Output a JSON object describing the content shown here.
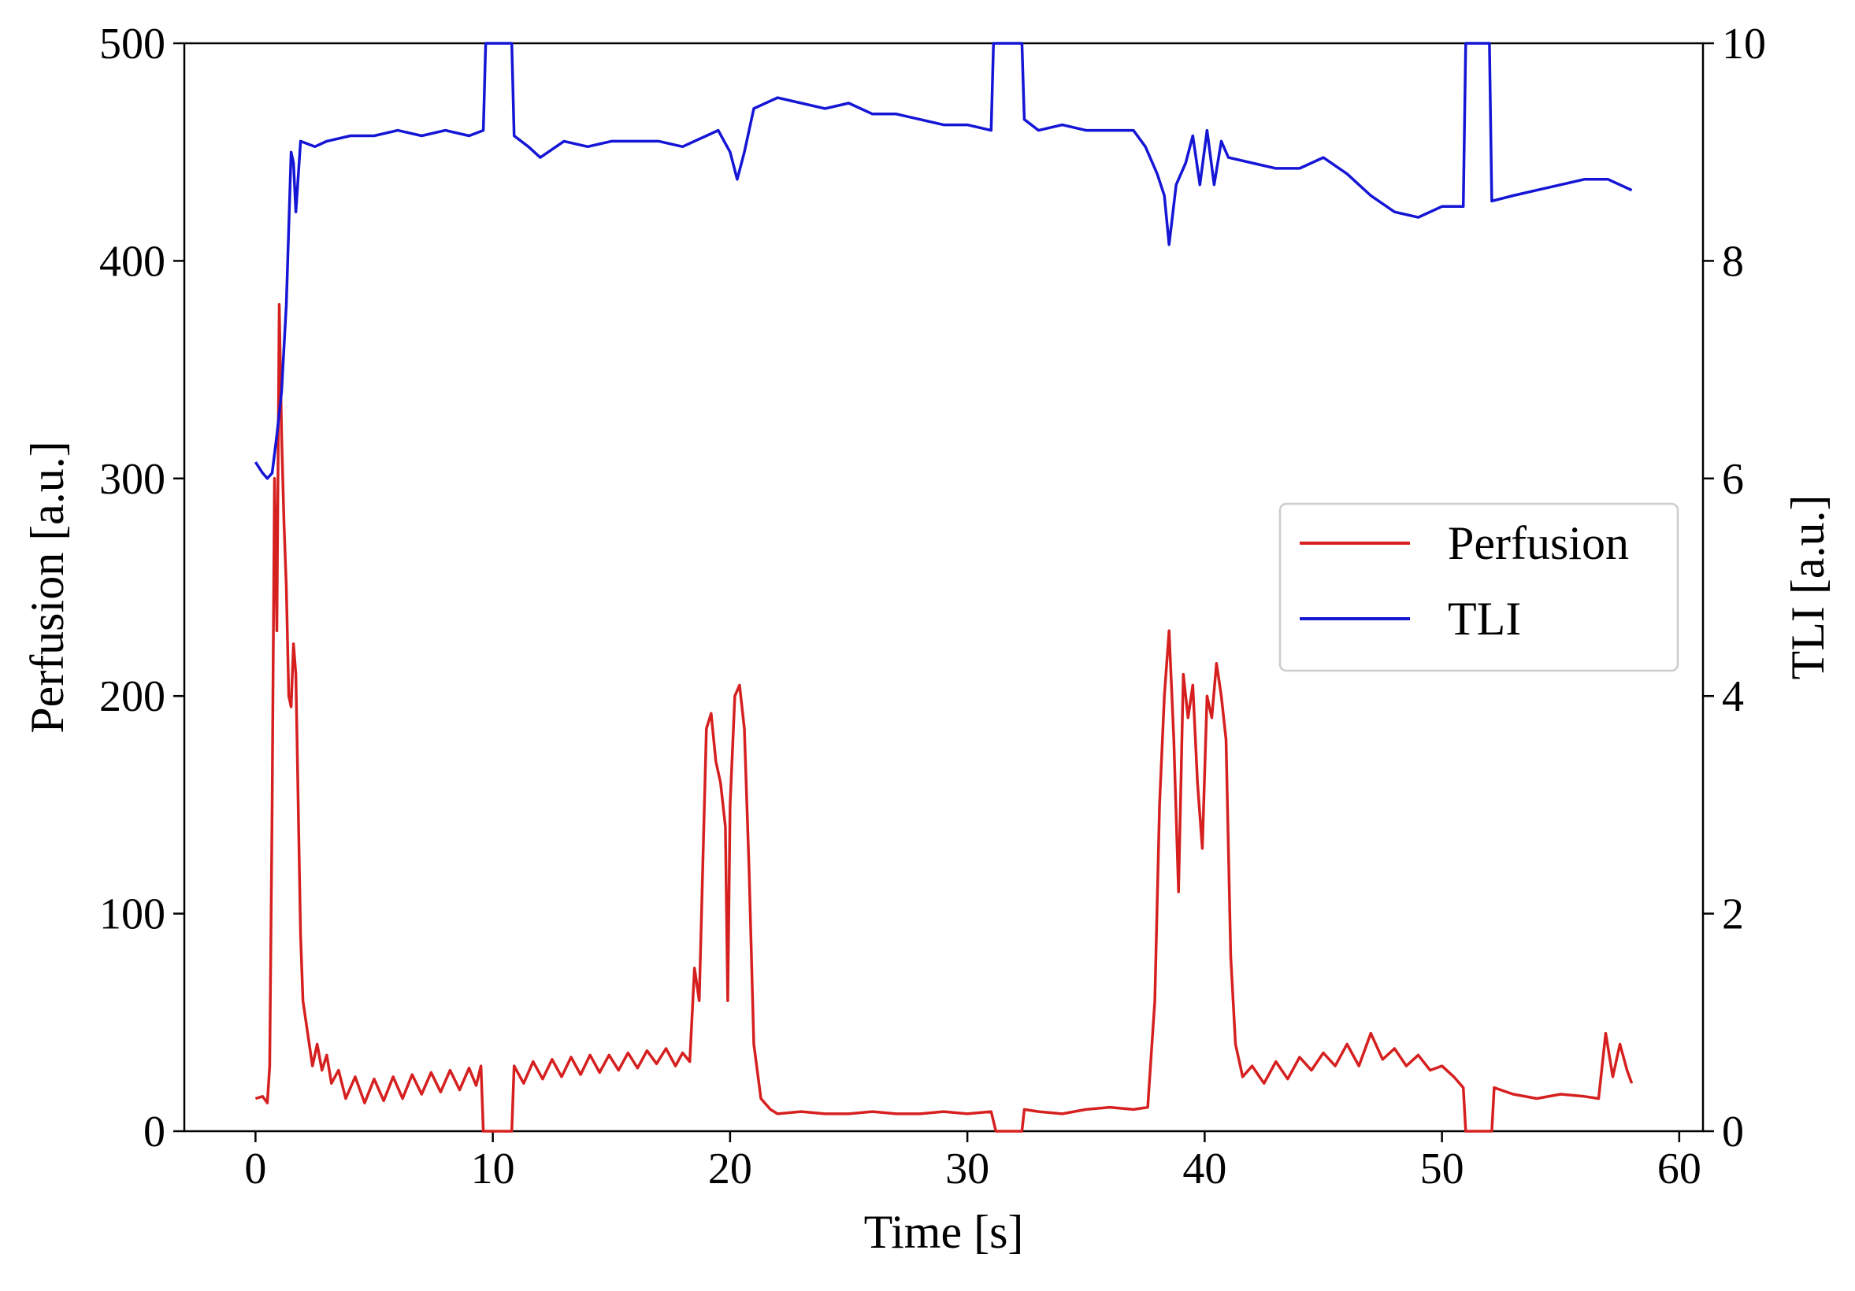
{
  "chart_data": {
    "type": "line",
    "title": "",
    "xlabel": "Time [s]",
    "ylabel": "Perfusion [a.u.]",
    "y2label": "TLI [a.u.]",
    "xlim": [
      -3,
      61
    ],
    "ylim": [
      0,
      500
    ],
    "y2lim": [
      0,
      10
    ],
    "xticks": [
      0,
      10,
      20,
      30,
      40,
      50,
      60
    ],
    "yticks": [
      0,
      100,
      200,
      300,
      400,
      500
    ],
    "y2ticks": [
      0,
      2,
      4,
      6,
      8,
      10
    ],
    "grid": false,
    "legend_position": "center-right",
    "series": [
      {
        "name": "Perfusion",
        "axis": "left",
        "color": "#d62020",
        "points": [
          [
            0,
            15
          ],
          [
            0.3,
            16
          ],
          [
            0.5,
            13
          ],
          [
            0.6,
            30
          ],
          [
            0.7,
            150
          ],
          [
            0.8,
            300
          ],
          [
            0.9,
            230
          ],
          [
            1.0,
            380
          ],
          [
            1.1,
            320
          ],
          [
            1.2,
            280
          ],
          [
            1.3,
            250
          ],
          [
            1.4,
            200
          ],
          [
            1.5,
            195
          ],
          [
            1.6,
            224
          ],
          [
            1.7,
            210
          ],
          [
            1.8,
            150
          ],
          [
            1.9,
            90
          ],
          [
            2.0,
            60
          ],
          [
            2.2,
            45
          ],
          [
            2.4,
            30
          ],
          [
            2.6,
            40
          ],
          [
            2.8,
            28
          ],
          [
            3.0,
            35
          ],
          [
            3.2,
            22
          ],
          [
            3.5,
            28
          ],
          [
            3.8,
            15
          ],
          [
            4.2,
            25
          ],
          [
            4.6,
            13
          ],
          [
            5.0,
            24
          ],
          [
            5.4,
            14
          ],
          [
            5.8,
            25
          ],
          [
            6.2,
            15
          ],
          [
            6.6,
            26
          ],
          [
            7.0,
            17
          ],
          [
            7.4,
            27
          ],
          [
            7.8,
            18
          ],
          [
            8.2,
            28
          ],
          [
            8.6,
            19
          ],
          [
            9.0,
            29
          ],
          [
            9.3,
            21
          ],
          [
            9.5,
            30
          ],
          [
            9.6,
            0
          ],
          [
            10.8,
            0
          ],
          [
            10.9,
            30
          ],
          [
            11.3,
            22
          ],
          [
            11.7,
            32
          ],
          [
            12.1,
            24
          ],
          [
            12.5,
            33
          ],
          [
            12.9,
            25
          ],
          [
            13.3,
            34
          ],
          [
            13.7,
            26
          ],
          [
            14.1,
            35
          ],
          [
            14.5,
            27
          ],
          [
            14.9,
            35
          ],
          [
            15.3,
            28
          ],
          [
            15.7,
            36
          ],
          [
            16.1,
            29
          ],
          [
            16.5,
            37
          ],
          [
            16.9,
            31
          ],
          [
            17.3,
            38
          ],
          [
            17.7,
            30
          ],
          [
            18.0,
            36
          ],
          [
            18.3,
            32
          ],
          [
            18.5,
            75
          ],
          [
            18.7,
            60
          ],
          [
            19.0,
            185
          ],
          [
            19.2,
            192
          ],
          [
            19.4,
            170
          ],
          [
            19.6,
            160
          ],
          [
            19.8,
            140
          ],
          [
            19.9,
            60
          ],
          [
            20.0,
            150
          ],
          [
            20.2,
            200
          ],
          [
            20.4,
            205
          ],
          [
            20.6,
            185
          ],
          [
            20.8,
            120
          ],
          [
            21.0,
            40
          ],
          [
            21.3,
            15
          ],
          [
            21.7,
            10
          ],
          [
            22,
            8
          ],
          [
            23,
            9
          ],
          [
            24,
            8
          ],
          [
            25,
            8
          ],
          [
            26,
            9
          ],
          [
            27,
            8
          ],
          [
            28,
            8
          ],
          [
            29,
            9
          ],
          [
            30,
            8
          ],
          [
            31,
            9
          ],
          [
            31.2,
            0
          ],
          [
            32.3,
            0
          ],
          [
            32.4,
            10
          ],
          [
            33,
            9
          ],
          [
            34,
            8
          ],
          [
            35,
            10
          ],
          [
            36,
            11
          ],
          [
            37,
            10
          ],
          [
            37.6,
            11
          ],
          [
            37.9,
            60
          ],
          [
            38.1,
            150
          ],
          [
            38.3,
            200
          ],
          [
            38.5,
            230
          ],
          [
            38.7,
            180
          ],
          [
            38.9,
            110
          ],
          [
            39.1,
            210
          ],
          [
            39.3,
            190
          ],
          [
            39.5,
            205
          ],
          [
            39.7,
            160
          ],
          [
            39.9,
            130
          ],
          [
            40.1,
            200
          ],
          [
            40.3,
            190
          ],
          [
            40.5,
            215
          ],
          [
            40.7,
            200
          ],
          [
            40.9,
            180
          ],
          [
            41.1,
            80
          ],
          [
            41.3,
            40
          ],
          [
            41.6,
            25
          ],
          [
            42,
            30
          ],
          [
            42.5,
            22
          ],
          [
            43,
            32
          ],
          [
            43.5,
            24
          ],
          [
            44,
            34
          ],
          [
            44.5,
            28
          ],
          [
            45,
            36
          ],
          [
            45.5,
            30
          ],
          [
            46,
            40
          ],
          [
            46.5,
            30
          ],
          [
            47,
            45
          ],
          [
            47.5,
            33
          ],
          [
            48,
            38
          ],
          [
            48.5,
            30
          ],
          [
            49,
            35
          ],
          [
            49.5,
            28
          ],
          [
            50,
            30
          ],
          [
            50.5,
            25
          ],
          [
            50.9,
            20
          ],
          [
            51.0,
            0
          ],
          [
            52.1,
            0
          ],
          [
            52.2,
            20
          ],
          [
            53,
            17
          ],
          [
            54,
            15
          ],
          [
            55,
            17
          ],
          [
            56,
            16
          ],
          [
            56.6,
            15
          ],
          [
            56.9,
            45
          ],
          [
            57.2,
            25
          ],
          [
            57.5,
            40
          ],
          [
            57.8,
            28
          ],
          [
            58,
            22
          ]
        ]
      },
      {
        "name": "TLI",
        "axis": "right",
        "color": "#1515d6",
        "points": [
          [
            0,
            6.15
          ],
          [
            0.3,
            6.05
          ],
          [
            0.5,
            6.0
          ],
          [
            0.7,
            6.05
          ],
          [
            0.9,
            6.4
          ],
          [
            1.1,
            6.8
          ],
          [
            1.3,
            7.6
          ],
          [
            1.5,
            9.0
          ],
          [
            1.6,
            8.9
          ],
          [
            1.7,
            8.45
          ],
          [
            1.9,
            9.1
          ],
          [
            2.5,
            9.05
          ],
          [
            3,
            9.1
          ],
          [
            4,
            9.15
          ],
          [
            5,
            9.15
          ],
          [
            6,
            9.2
          ],
          [
            7,
            9.15
          ],
          [
            8,
            9.2
          ],
          [
            9,
            9.15
          ],
          [
            9.6,
            9.2
          ],
          [
            9.7,
            10
          ],
          [
            10.8,
            10
          ],
          [
            10.9,
            9.15
          ],
          [
            11.5,
            9.05
          ],
          [
            12,
            8.95
          ],
          [
            13,
            9.1
          ],
          [
            14,
            9.05
          ],
          [
            15,
            9.1
          ],
          [
            16,
            9.1
          ],
          [
            17,
            9.1
          ],
          [
            18,
            9.05
          ],
          [
            19,
            9.15
          ],
          [
            19.5,
            9.2
          ],
          [
            20,
            9.0
          ],
          [
            20.3,
            8.75
          ],
          [
            20.6,
            9.0
          ],
          [
            21,
            9.4
          ],
          [
            22,
            9.5
          ],
          [
            23,
            9.45
          ],
          [
            24,
            9.4
          ],
          [
            25,
            9.45
          ],
          [
            26,
            9.35
          ],
          [
            27,
            9.35
          ],
          [
            28,
            9.3
          ],
          [
            29,
            9.25
          ],
          [
            30,
            9.25
          ],
          [
            31,
            9.2
          ],
          [
            31.1,
            10
          ],
          [
            32.3,
            10
          ],
          [
            32.4,
            9.3
          ],
          [
            33,
            9.2
          ],
          [
            34,
            9.25
          ],
          [
            35,
            9.2
          ],
          [
            36,
            9.2
          ],
          [
            37,
            9.2
          ],
          [
            37.5,
            9.05
          ],
          [
            38,
            8.8
          ],
          [
            38.3,
            8.6
          ],
          [
            38.5,
            8.15
          ],
          [
            38.8,
            8.7
          ],
          [
            39.2,
            8.9
          ],
          [
            39.5,
            9.15
          ],
          [
            39.8,
            8.7
          ],
          [
            40.1,
            9.2
          ],
          [
            40.4,
            8.7
          ],
          [
            40.7,
            9.1
          ],
          [
            41,
            8.95
          ],
          [
            42,
            8.9
          ],
          [
            43,
            8.85
          ],
          [
            44,
            8.85
          ],
          [
            45,
            8.95
          ],
          [
            46,
            8.8
          ],
          [
            47,
            8.6
          ],
          [
            48,
            8.45
          ],
          [
            49,
            8.4
          ],
          [
            50,
            8.5
          ],
          [
            50.9,
            8.5
          ],
          [
            51.0,
            10
          ],
          [
            52.0,
            10
          ],
          [
            52.1,
            8.55
          ],
          [
            53,
            8.6
          ],
          [
            54,
            8.65
          ],
          [
            55,
            8.7
          ],
          [
            56,
            8.75
          ],
          [
            57,
            8.75
          ],
          [
            58,
            8.65
          ]
        ]
      }
    ]
  }
}
